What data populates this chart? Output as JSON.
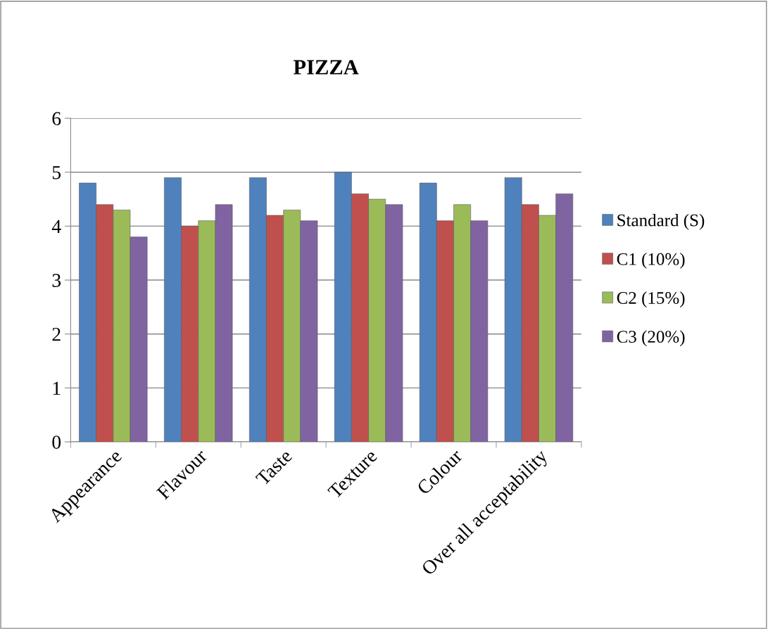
{
  "chart_data": {
    "type": "bar",
    "title": "PIZZA",
    "categories": [
      "Appearance",
      "Flavour",
      "Taste",
      "Texture",
      "Colour",
      "Over all acceptability"
    ],
    "series": [
      {
        "name": "Standard (S)",
        "color": "#4f81bd",
        "values": [
          4.8,
          4.9,
          4.9,
          5.0,
          4.8,
          4.9
        ]
      },
      {
        "name": "C1 (10%)",
        "color": "#c0504d",
        "values": [
          4.4,
          4.0,
          4.2,
          4.6,
          4.1,
          4.4
        ]
      },
      {
        "name": "C2 (15%)",
        "color": "#9bbb59",
        "values": [
          4.3,
          4.1,
          4.3,
          4.5,
          4.4,
          4.2
        ]
      },
      {
        "name": "C3 (20%)",
        "color": "#8064a2",
        "values": [
          3.8,
          4.4,
          4.1,
          4.4,
          4.1,
          4.6
        ]
      }
    ],
    "ylim": [
      0,
      6
    ],
    "yticks": [
      0,
      1,
      2,
      3,
      4,
      5,
      6
    ],
    "grid": "y",
    "legend": "right"
  }
}
